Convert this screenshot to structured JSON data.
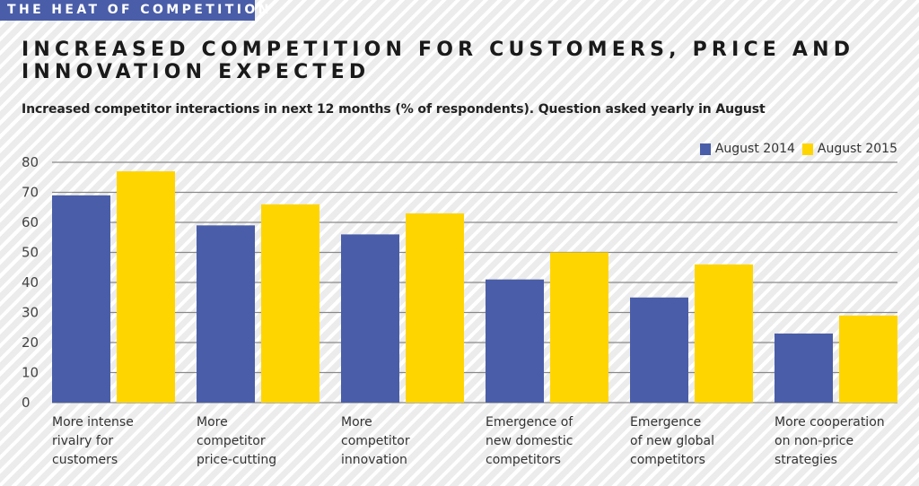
{
  "header": {
    "tag": "THE HEAT OF COMPETITION",
    "title": "INCREASED COMPETITION FOR CUSTOMERS, PRICE AND INNOVATION EXPECTED",
    "subtitle": "Increased competitor interactions in next 12 months (% of respondents). Question asked yearly in August"
  },
  "colors": {
    "tag_bg": "#4a5da8",
    "series_2014": "#4a5da8",
    "series_2015": "#ffd500",
    "grid": "#888888"
  },
  "chart_data": {
    "type": "bar",
    "title": "Increased competitor interactions in next 12 months (% of respondents). Question asked yearly in August",
    "xlabel": "",
    "ylabel": "",
    "ylim": [
      0,
      80
    ],
    "yticks": [
      "0",
      "10",
      "20",
      "30",
      "40",
      "50",
      "60",
      "70",
      "80"
    ],
    "grid": true,
    "legend_position": "top-right",
    "categories": [
      [
        "More intense",
        "rivalry for",
        "customers"
      ],
      [
        "More",
        "competitor",
        "price-cutting"
      ],
      [
        "More",
        "competitor",
        "innovation"
      ],
      [
        "Emergence of",
        "new domestic",
        "competitors"
      ],
      [
        "Emergence",
        "of new global",
        "competitors"
      ],
      [
        "More cooperation",
        "on non-price",
        "strategies"
      ]
    ],
    "series": [
      {
        "name": "August 2014",
        "color": "#4a5da8",
        "values": [
          69,
          59,
          56,
          41,
          35,
          23
        ]
      },
      {
        "name": "August 2015",
        "color": "#ffd500",
        "values": [
          77,
          66,
          63,
          50,
          46,
          29
        ]
      }
    ]
  }
}
